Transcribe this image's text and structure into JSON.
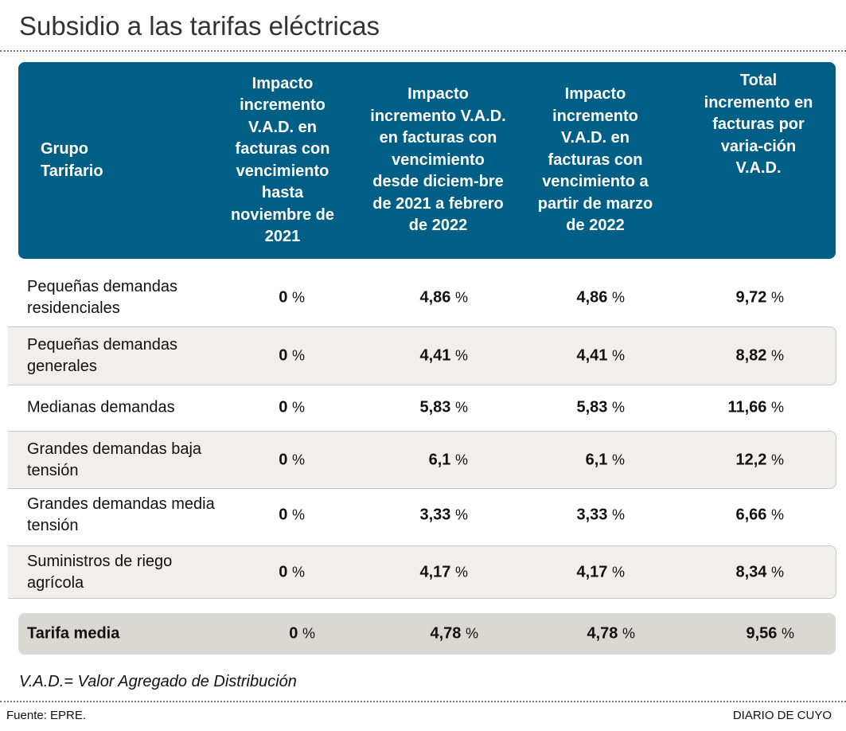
{
  "title": "Subsidio a las tarifas eléctricas",
  "headers": [
    "Grupo Tarifario",
    "Impacto incremento V.A.D. en facturas con vencimiento hasta noviembre de 2021",
    "Impacto incremento V.A.D. en facturas con vencimiento desde diciem-bre de 2021 a febrero de 2022",
    "Impacto incremento V.A.D. en facturas con vencimiento a partir de marzo de 2022",
    "Total incremento en facturas por varia-ción V.A.D."
  ],
  "pct": "%",
  "rows": [
    {
      "label": "Pequeñas demandas residenciales",
      "v": [
        "0",
        "4,86",
        "4,86",
        "9,72"
      ]
    },
    {
      "label": "Pequeñas demandas generales",
      "v": [
        "0",
        "4,41",
        "4,41",
        "8,82"
      ]
    },
    {
      "label": "Medianas demandas",
      "v": [
        "0",
        "5,83",
        "5,83",
        "11,66"
      ]
    },
    {
      "label": "Grandes demandas baja tensión",
      "v": [
        "0",
        "6,1",
        "6,1",
        "12,2"
      ]
    },
    {
      "label": "Grandes demandas media tensión",
      "v": [
        "0",
        "3,33",
        "3,33",
        "6,66"
      ]
    },
    {
      "label": "Suministros de riego agrícola",
      "v": [
        "0",
        "4,17",
        "4,17",
        "8,34"
      ]
    }
  ],
  "total": {
    "label": "Tarifa media",
    "v": [
      "0",
      "4,78",
      "4,78",
      "9,56"
    ]
  },
  "note": "V.A.D.= Valor Agregado de Distribución",
  "source": "Fuente: EPRE.",
  "brand": "DIARIO DE CUYO",
  "colors": {
    "header": "#005f87",
    "shade": "#f0efeb",
    "total": "#d9d8d2"
  }
}
